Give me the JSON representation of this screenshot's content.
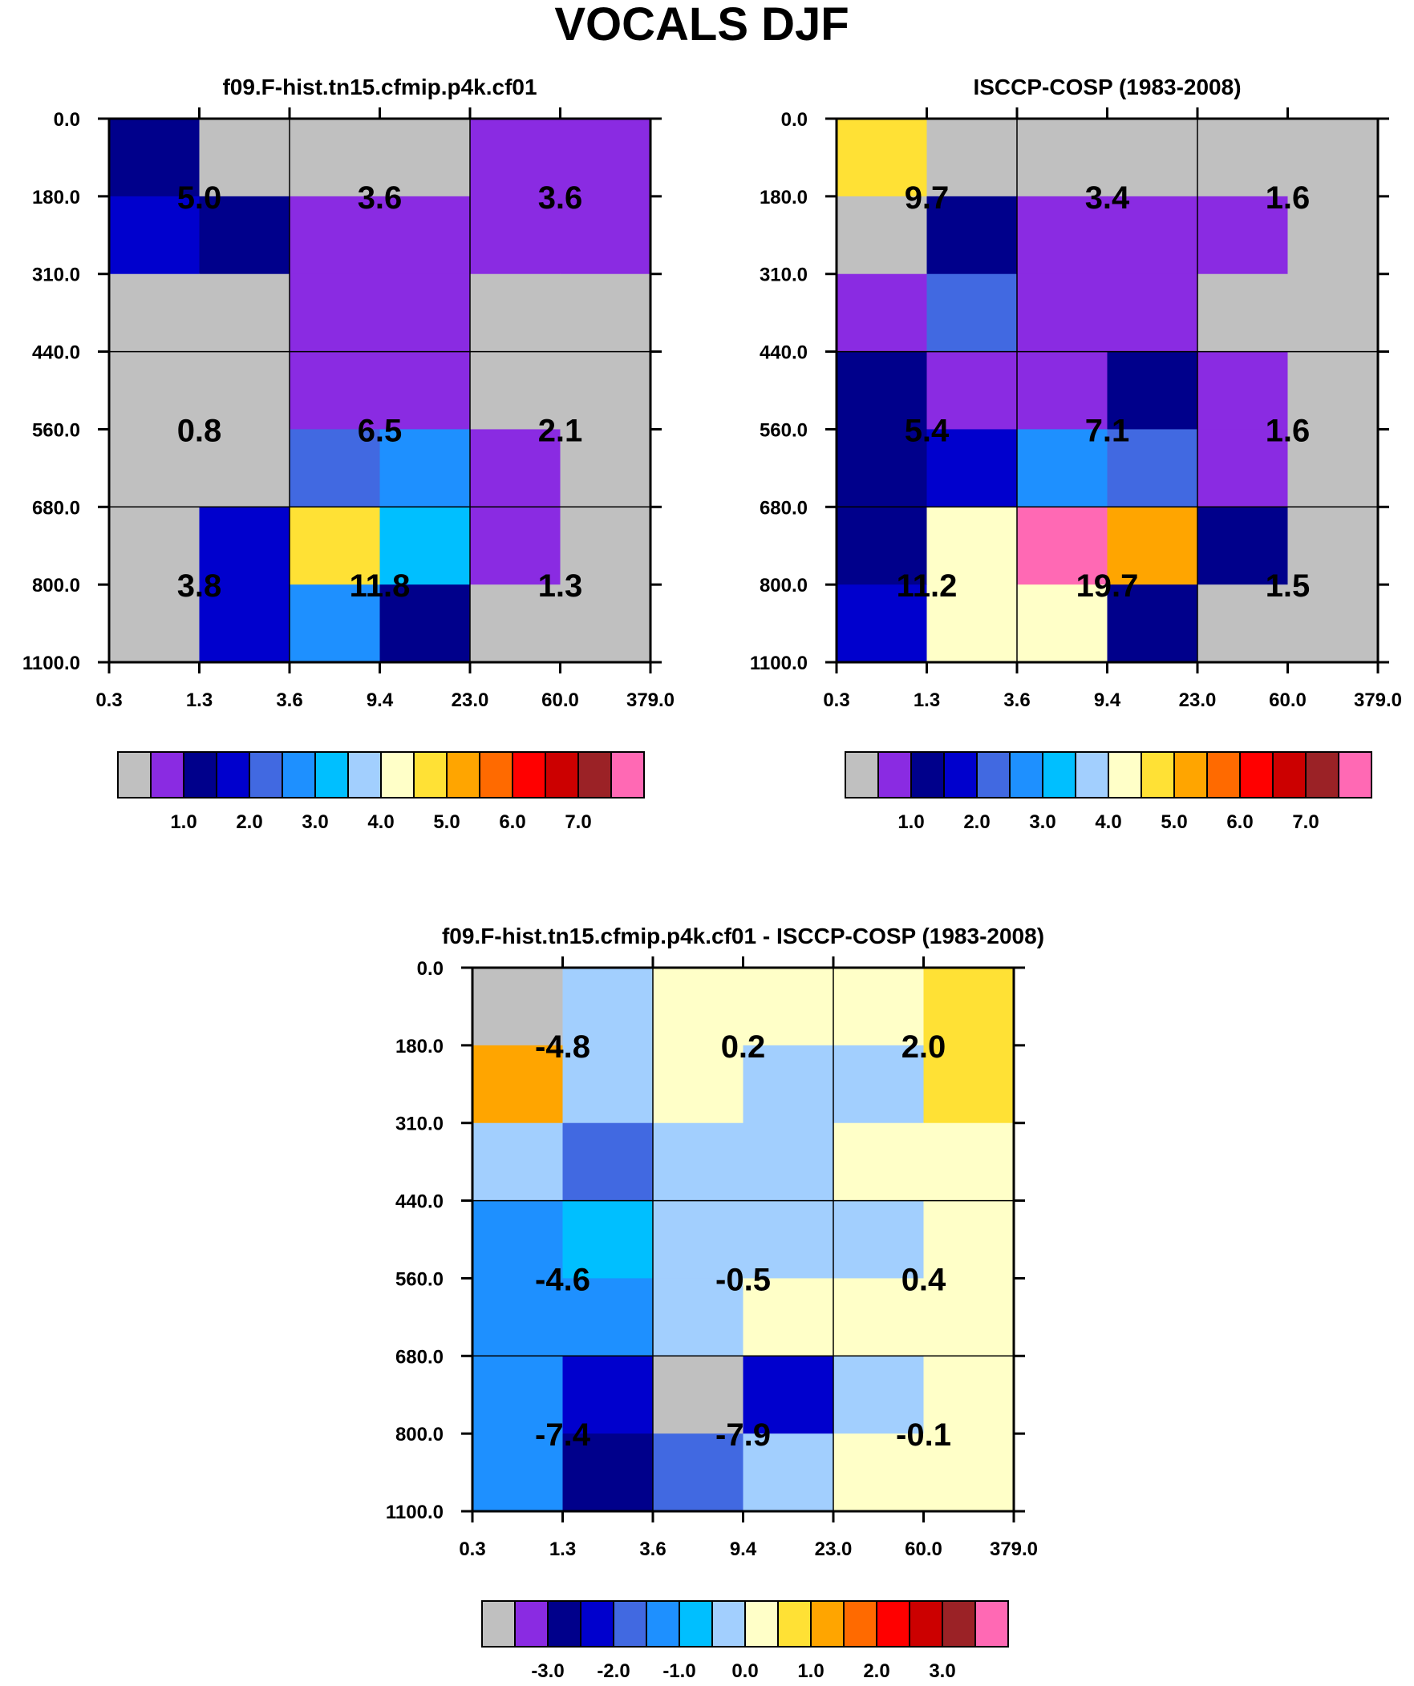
{
  "figure_title": "VOCALS DJF",
  "colors": {
    "gray": "#c0c0c0",
    "purple": "#8a2be2",
    "navy": "#00008b",
    "blue": "#0000cd",
    "royalblue": "#4169e1",
    "dodgerblue": "#1e90ff",
    "deepskyblue": "#00bfff",
    "lightblue": "#a2cffe",
    "lightyellow": "#ffffc8",
    "gold": "#ffe135",
    "orange": "#ffa500",
    "darkorange": "#ff6a00",
    "red": "#ff0000",
    "crimson": "#cc0000",
    "brown": "#9b2226",
    "pink": "#ff69b4"
  },
  "chart_data": [
    {
      "type": "heatmap",
      "title": "f09.F-hist.tn15.cfmip.p4k.cf01",
      "x_tick_labels": [
        "0.3",
        "1.3",
        "3.6",
        "9.4",
        "23.0",
        "60.0",
        "379.0"
      ],
      "y_tick_labels": [
        "0.0",
        "180.0",
        "310.0",
        "440.0",
        "560.0",
        "680.0",
        "800.0",
        "1100.0"
      ],
      "cell_colors": [
        [
          "navy",
          "gray",
          "gray",
          "gray",
          "purple",
          "purple"
        ],
        [
          "blue",
          "navy",
          "purple",
          "purple",
          "purple",
          "purple"
        ],
        [
          "gray",
          "gray",
          "purple",
          "purple",
          "gray",
          "gray"
        ],
        [
          "gray",
          "gray",
          "purple",
          "purple",
          "gray",
          "gray"
        ],
        [
          "gray",
          "gray",
          "royalblue",
          "dodgerblue",
          "purple",
          "gray"
        ],
        [
          "gray",
          "blue",
          "gold",
          "deepskyblue",
          "purple",
          "gray"
        ],
        [
          "gray",
          "blue",
          "dodgerblue",
          "navy",
          "gray",
          "gray"
        ]
      ],
      "group_values": [
        {
          "x": "1.3",
          "y": "180.0",
          "value": "5.0"
        },
        {
          "x": "9.4",
          "y": "180.0",
          "value": "3.6"
        },
        {
          "x": "60.0",
          "y": "180.0",
          "value": "3.6"
        },
        {
          "x": "1.3",
          "y": "560.0",
          "value": "0.8"
        },
        {
          "x": "9.4",
          "y": "560.0",
          "value": "6.5"
        },
        {
          "x": "60.0",
          "y": "560.0",
          "value": "2.1"
        },
        {
          "x": "1.3",
          "y": "800.0",
          "value": "3.8"
        },
        {
          "x": "9.4",
          "y": "800.0",
          "value": "11.8"
        },
        {
          "x": "60.0",
          "y": "800.0",
          "value": "1.3"
        }
      ],
      "colorbar": {
        "colors": [
          "gray",
          "purple",
          "navy",
          "blue",
          "royalblue",
          "dodgerblue",
          "deepskyblue",
          "lightblue",
          "lightyellow",
          "gold",
          "orange",
          "darkorange",
          "red",
          "crimson",
          "brown",
          "pink"
        ],
        "labels": [
          "1.0",
          "2.0",
          "3.0",
          "4.0",
          "5.0",
          "6.0",
          "7.0"
        ]
      }
    },
    {
      "type": "heatmap",
      "title": "ISCCP-COSP (1983-2008)",
      "x_tick_labels": [
        "0.3",
        "1.3",
        "3.6",
        "9.4",
        "23.0",
        "60.0",
        "379.0"
      ],
      "y_tick_labels": [
        "0.0",
        "180.0",
        "310.0",
        "440.0",
        "560.0",
        "680.0",
        "800.0",
        "1100.0"
      ],
      "cell_colors": [
        [
          "gold",
          "gray",
          "gray",
          "gray",
          "gray",
          "gray"
        ],
        [
          "gray",
          "navy",
          "purple",
          "purple",
          "purple",
          "gray"
        ],
        [
          "purple",
          "royalblue",
          "purple",
          "purple",
          "gray",
          "gray"
        ],
        [
          "navy",
          "purple",
          "purple",
          "navy",
          "purple",
          "gray"
        ],
        [
          "navy",
          "blue",
          "dodgerblue",
          "royalblue",
          "purple",
          "gray"
        ],
        [
          "navy",
          "lightyellow",
          "pink",
          "orange",
          "navy",
          "gray"
        ],
        [
          "blue",
          "lightyellow",
          "lightyellow",
          "navy",
          "gray",
          "gray"
        ]
      ],
      "group_values": [
        {
          "x": "1.3",
          "y": "180.0",
          "value": "9.7"
        },
        {
          "x": "9.4",
          "y": "180.0",
          "value": "3.4"
        },
        {
          "x": "60.0",
          "y": "180.0",
          "value": "1.6"
        },
        {
          "x": "1.3",
          "y": "560.0",
          "value": "5.4"
        },
        {
          "x": "9.4",
          "y": "560.0",
          "value": "7.1"
        },
        {
          "x": "60.0",
          "y": "560.0",
          "value": "1.6"
        },
        {
          "x": "1.3",
          "y": "800.0",
          "value": "11.2"
        },
        {
          "x": "9.4",
          "y": "800.0",
          "value": "19.7"
        },
        {
          "x": "60.0",
          "y": "800.0",
          "value": "1.5"
        }
      ],
      "colorbar": {
        "colors": [
          "gray",
          "purple",
          "navy",
          "blue",
          "royalblue",
          "dodgerblue",
          "deepskyblue",
          "lightblue",
          "lightyellow",
          "gold",
          "orange",
          "darkorange",
          "red",
          "crimson",
          "brown",
          "pink"
        ],
        "labels": [
          "1.0",
          "2.0",
          "3.0",
          "4.0",
          "5.0",
          "6.0",
          "7.0"
        ]
      }
    },
    {
      "type": "heatmap",
      "title": "f09.F-hist.tn15.cfmip.p4k.cf01 - ISCCP-COSP (1983-2008)",
      "x_tick_labels": [
        "0.3",
        "1.3",
        "3.6",
        "9.4",
        "23.0",
        "60.0",
        "379.0"
      ],
      "y_tick_labels": [
        "0.0",
        "180.0",
        "310.0",
        "440.0",
        "560.0",
        "680.0",
        "800.0",
        "1100.0"
      ],
      "cell_colors": [
        [
          "gray",
          "lightblue",
          "lightyellow",
          "lightyellow",
          "lightyellow",
          "gold"
        ],
        [
          "orange",
          "lightblue",
          "lightyellow",
          "lightblue",
          "lightblue",
          "gold"
        ],
        [
          "lightblue",
          "royalblue",
          "lightblue",
          "lightblue",
          "lightyellow",
          "lightyellow"
        ],
        [
          "dodgerblue",
          "deepskyblue",
          "lightblue",
          "lightblue",
          "lightblue",
          "lightyellow"
        ],
        [
          "dodgerblue",
          "dodgerblue",
          "lightblue",
          "lightyellow",
          "lightyellow",
          "lightyellow"
        ],
        [
          "dodgerblue",
          "blue",
          "gray",
          "blue",
          "lightblue",
          "lightyellow"
        ],
        [
          "dodgerblue",
          "navy",
          "royalblue",
          "lightblue",
          "lightyellow",
          "lightyellow"
        ]
      ],
      "group_values": [
        {
          "x": "1.3",
          "y": "180.0",
          "value": "-4.8"
        },
        {
          "x": "9.4",
          "y": "180.0",
          "value": "0.2"
        },
        {
          "x": "60.0",
          "y": "180.0",
          "value": "2.0"
        },
        {
          "x": "1.3",
          "y": "560.0",
          "value": "-4.6"
        },
        {
          "x": "9.4",
          "y": "560.0",
          "value": "-0.5"
        },
        {
          "x": "60.0",
          "y": "560.0",
          "value": "0.4"
        },
        {
          "x": "1.3",
          "y": "800.0",
          "value": "-7.4"
        },
        {
          "x": "9.4",
          "y": "800.0",
          "value": "-7.9"
        },
        {
          "x": "60.0",
          "y": "800.0",
          "value": "-0.1"
        }
      ],
      "colorbar": {
        "colors": [
          "gray",
          "purple",
          "navy",
          "blue",
          "royalblue",
          "dodgerblue",
          "deepskyblue",
          "lightblue",
          "lightyellow",
          "gold",
          "orange",
          "darkorange",
          "red",
          "crimson",
          "brown",
          "pink"
        ],
        "labels": [
          "-3.0",
          "-2.0",
          "-1.0",
          "0.0",
          "1.0",
          "2.0",
          "3.0"
        ]
      }
    }
  ]
}
